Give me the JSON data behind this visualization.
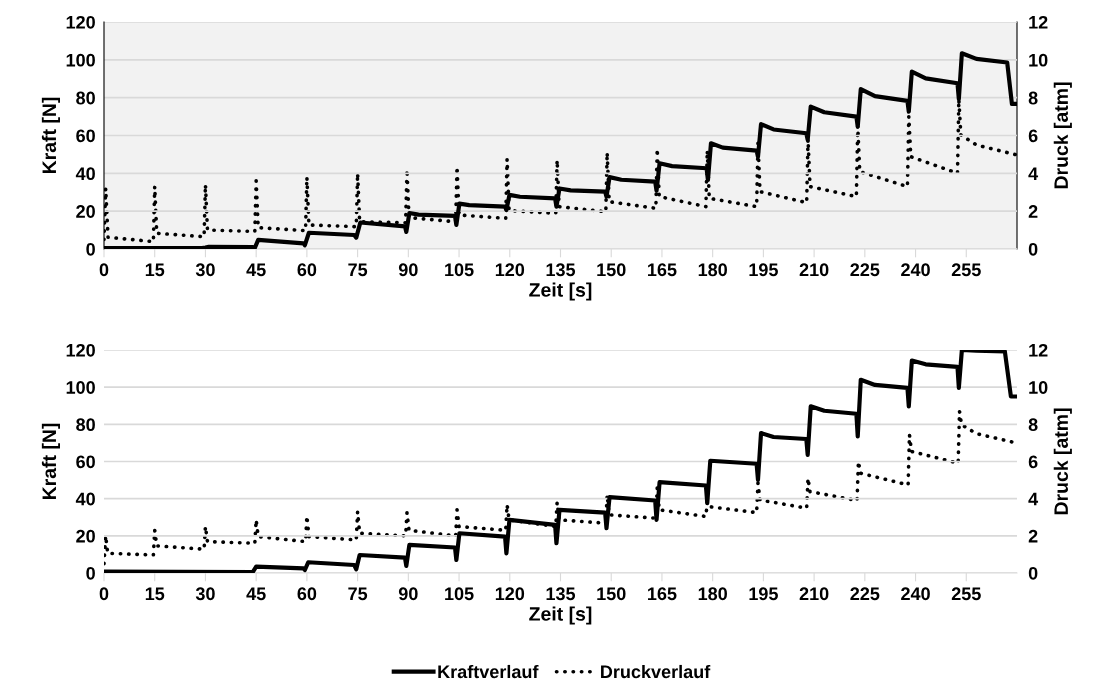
{
  "chart_data": [
    {
      "type": "line",
      "xlabel": "Zeit [s]",
      "ylabel": "Kraft [N]",
      "y2label": "Druck [atm]",
      "xlim": [
        0,
        270
      ],
      "xticks": [
        0,
        15,
        30,
        45,
        60,
        75,
        90,
        105,
        120,
        135,
        150,
        165,
        180,
        195,
        210,
        225,
        240,
        255
      ],
      "ylim": [
        0,
        120
      ],
      "yticks": [
        0,
        20,
        40,
        60,
        80,
        100,
        120
      ],
      "y2lim": [
        0,
        12
      ],
      "y2ticks": [
        0,
        2,
        4,
        6,
        8,
        10,
        12
      ],
      "grid": "y",
      "legend": "bottom",
      "series": [
        {
          "name": "Kraftverlauf",
          "color": "#000000",
          "line_style": "solid",
          "x": [
            0,
            29,
            30,
            31,
            44,
            44.6,
            45.6,
            59,
            59.4,
            60.6,
            74,
            74.6,
            75.8,
            89,
            89.4,
            90.3,
            93,
            103.8,
            104.2,
            105.1,
            108,
            118.6,
            119,
            119.9,
            123,
            133.4,
            133.8,
            134.7,
            138,
            148.2,
            148.6,
            149.5,
            153,
            163,
            163.4,
            164.3,
            168,
            178.2,
            178.6,
            179.5,
            183,
            193,
            193.4,
            194.3,
            198,
            207.7,
            208.1,
            209,
            213,
            222.5,
            222.9,
            223.8,
            228,
            237.6,
            238,
            238.9,
            243,
            252.4,
            252.8,
            253.7,
            258,
            267.1,
            268.5,
            270
          ],
          "values": [
            0.5,
            0.5,
            0.8,
            1.2,
            1,
            0.6,
            4.8,
            3,
            2,
            8.6,
            7.4,
            6,
            14,
            12,
            9,
            19,
            18.2,
            17.5,
            12.7,
            24,
            23.2,
            22.4,
            20.6,
            28.6,
            27.6,
            26.8,
            22.4,
            32,
            31,
            30.3,
            27.7,
            38,
            36.6,
            35.6,
            30.8,
            45.3,
            43.8,
            42.7,
            36.5,
            55.9,
            53.6,
            52,
            48.8,
            66,
            63.2,
            61.2,
            57.7,
            75.3,
            72.3,
            70,
            64.7,
            84.5,
            80.8,
            78.3,
            72.6,
            93.8,
            90.2,
            87.6,
            79.2,
            103.5,
            100.5,
            98.6,
            76.7,
            76.7
          ]
        },
        {
          "name": "Druckverlauf",
          "color": "#000000",
          "line_style": "dotted",
          "axis": "y2",
          "x": [
            0,
            0.5,
            1.2,
            14.6,
            15,
            15.6,
            29.6,
            30,
            30.6,
            44.6,
            45,
            45.6,
            59.6,
            60,
            60.6,
            74.6,
            75,
            75.6,
            89.2,
            89.6,
            90.2,
            104,
            104.4,
            105,
            118.8,
            119.2,
            119.8,
            133.6,
            134,
            134.6,
            148.4,
            148.8,
            149.4,
            163.2,
            163.6,
            164.2,
            178,
            178.4,
            179,
            193,
            193.4,
            194,
            207.8,
            208.2,
            208.8,
            222.5,
            222.9,
            223.5,
            237.6,
            238,
            238.6,
            252.4,
            252.8,
            253.4,
            258,
            270
          ],
          "values": [
            0.5,
            3.2,
            0.62,
            0.39,
            3.3,
            0.83,
            0.65,
            3.4,
            1.0,
            0.93,
            3.6,
            1.13,
            0.97,
            3.8,
            1.27,
            1.18,
            4.0,
            1.44,
            1.39,
            4.2,
            1.66,
            1.44,
            4.35,
            1.8,
            1.62,
            4.75,
            2.03,
            1.89,
            4.7,
            2.24,
            1.97,
            5.1,
            2.5,
            2.15,
            5.3,
            2.77,
            2.24,
            5.2,
            2.68,
            2.24,
            5.6,
            3.03,
            2.45,
            5.8,
            3.3,
            2.77,
            6.5,
            4.09,
            3.3,
            7.0,
            4.88,
            4.0,
            7.9,
            6.03,
            5.5,
            4.97
          ]
        }
      ]
    },
    {
      "type": "line",
      "xlabel": "Zeit [s]",
      "ylabel": "Kraft [N]",
      "y2label": "Druck [atm]",
      "xlim": [
        0,
        270
      ],
      "xticks": [
        0,
        15,
        30,
        45,
        60,
        75,
        90,
        105,
        120,
        135,
        150,
        165,
        180,
        195,
        210,
        225,
        240,
        255
      ],
      "ylim": [
        0,
        120
      ],
      "yticks": [
        0,
        20,
        40,
        60,
        80,
        100,
        120
      ],
      "y2lim": [
        0,
        12
      ],
      "y2ticks": [
        0,
        2,
        4,
        6,
        8,
        10,
        12
      ],
      "grid": "y",
      "series": [
        {
          "name": "Kraftverlauf",
          "color": "#000000",
          "line_style": "solid",
          "x": [
            0,
            44,
            45,
            59,
            59.4,
            60.4,
            74,
            74.6,
            75.6,
            89,
            89.4,
            90.3,
            103.8,
            104.2,
            105.1,
            118.6,
            119,
            119.9,
            133.4,
            133.8,
            134.7,
            148.2,
            148.6,
            149.5,
            163,
            163.4,
            164.3,
            178,
            178.4,
            179.3,
            193,
            193.4,
            194.3,
            198,
            207.7,
            208.1,
            209,
            213,
            222.5,
            222.9,
            223.8,
            228,
            237.6,
            238,
            238.9,
            243,
            252.4,
            252.8,
            253.7,
            258,
            266.4,
            268.2,
            270
          ],
          "values": [
            0.7,
            0.5,
            3.4,
            2.5,
            1.6,
            5.8,
            4.3,
            2,
            9.7,
            8.3,
            3.8,
            15.1,
            13.7,
            7,
            21.4,
            19.6,
            10.6,
            28.6,
            25.9,
            16,
            34,
            32.5,
            24.1,
            40.8,
            39,
            28.6,
            48.9,
            47.1,
            37.6,
            60.4,
            58.8,
            50.1,
            75.3,
            73.2,
            72.1,
            63.6,
            89.7,
            87.3,
            85.7,
            73.5,
            104,
            101.2,
            99.6,
            89.7,
            114.3,
            112.3,
            110.9,
            99.6,
            120,
            119.7,
            119.3,
            95,
            95
          ]
        },
        {
          "name": "Druckverlauf",
          "color": "#000000",
          "line_style": "dotted",
          "axis": "y2",
          "x": [
            0,
            0.5,
            1.1,
            14.6,
            15,
            15.6,
            29.6,
            30,
            30.6,
            44.6,
            45,
            45.6,
            59.6,
            60,
            60.6,
            74.6,
            75,
            75.6,
            89.2,
            89.6,
            90.2,
            104,
            104.4,
            105,
            118.8,
            119.2,
            119.8,
            133.6,
            134,
            134.6,
            148.4,
            148.8,
            149.4,
            163.2,
            163.6,
            164.2,
            178,
            178.4,
            179,
            193,
            193.4,
            194,
            207.8,
            208.2,
            208.8,
            222.7,
            223.1,
            223.7,
            237.8,
            238.2,
            238.8,
            252.6,
            253,
            253.6,
            258,
            270
          ],
          "values": [
            0.5,
            2.0,
            1.06,
            0.97,
            2.3,
            1.46,
            1.28,
            2.5,
            1.69,
            1.6,
            2.86,
            1.96,
            1.69,
            3.07,
            1.96,
            1.78,
            3.3,
            2.14,
            2.0,
            3.25,
            2.3,
            2.0,
            3.4,
            2.5,
            2.3,
            3.67,
            2.86,
            2.5,
            3.8,
            2.86,
            2.68,
            4.2,
            3.13,
            2.95,
            4.57,
            3.4,
            3.04,
            3.84,
            3.57,
            3.25,
            4.84,
            3.93,
            3.49,
            5.1,
            4.38,
            3.9,
            6.0,
            5.37,
            4.74,
            7.44,
            6.54,
            5.91,
            8.7,
            7.98,
            7.5,
            6.99
          ]
        }
      ]
    }
  ]
}
